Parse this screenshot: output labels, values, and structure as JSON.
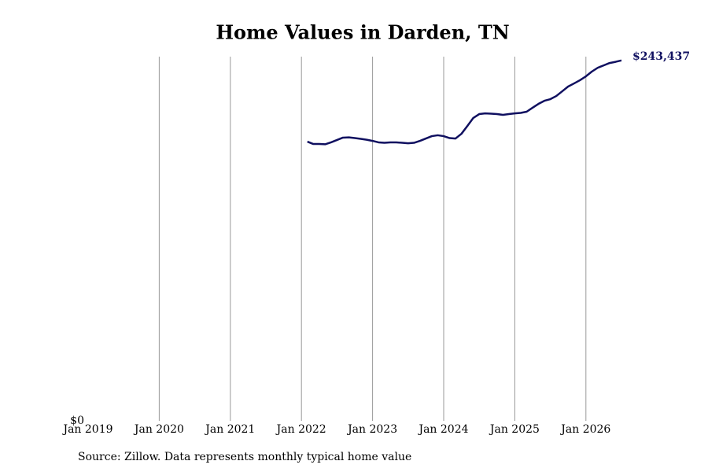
{
  "chart_data": {
    "type": "line",
    "title": "Home Values in Darden, TN",
    "source": "Source: Zillow. Data represents monthly typical home value",
    "x": [
      "2022-02",
      "2022-03",
      "2022-04",
      "2022-05",
      "2022-06",
      "2022-07",
      "2022-08",
      "2022-09",
      "2022-10",
      "2022-11",
      "2022-12",
      "2023-01",
      "2023-02",
      "2023-03",
      "2023-04",
      "2023-05",
      "2023-06",
      "2023-07",
      "2023-08",
      "2023-09",
      "2023-10",
      "2023-11",
      "2023-12",
      "2024-01",
      "2024-02",
      "2024-03",
      "2024-04",
      "2024-05",
      "2024-06",
      "2024-07",
      "2024-08",
      "2024-09",
      "2024-10",
      "2024-11",
      "2024-12",
      "2025-01",
      "2025-02",
      "2025-03",
      "2025-04",
      "2025-05",
      "2025-06",
      "2025-07",
      "2025-08",
      "2025-09",
      "2025-10",
      "2025-11",
      "2025-12",
      "2026-01",
      "2026-02",
      "2026-03",
      "2026-04",
      "2026-05",
      "2026-06",
      "2026-07"
    ],
    "series": [
      {
        "name": "Typical home value",
        "color": "#101060",
        "values": [
          188600,
          187000,
          187000,
          186800,
          188100,
          189700,
          191300,
          191500,
          191000,
          190500,
          189900,
          189100,
          188100,
          187800,
          188100,
          188100,
          187800,
          187500,
          187800,
          189100,
          190700,
          192300,
          192900,
          192300,
          191000,
          190700,
          193900,
          199200,
          204600,
          207200,
          207700,
          207500,
          207200,
          206700,
          207200,
          207700,
          208000,
          208800,
          211500,
          214100,
          216200,
          217300,
          219400,
          222600,
          225800,
          227900,
          230100,
          232700,
          235900,
          238500,
          240100,
          241700,
          242500,
          243437
        ],
        "last_value_label": "$243,437"
      }
    ],
    "xlim": [
      "2019-01",
      "2026-07"
    ],
    "xticks": [
      {
        "value": "2019-01",
        "label": "Jan 2019"
      },
      {
        "value": "2020-01",
        "label": "Jan 2020"
      },
      {
        "value": "2021-01",
        "label": "Jan 2021"
      },
      {
        "value": "2022-01",
        "label": "Jan 2022"
      },
      {
        "value": "2023-01",
        "label": "Jan 2023"
      },
      {
        "value": "2024-01",
        "label": "Jan 2024"
      },
      {
        "value": "2025-01",
        "label": "Jan 2025"
      },
      {
        "value": "2026-01",
        "label": "Jan 2026"
      }
    ],
    "ylim": [
      0,
      246000
    ],
    "yticks": [
      {
        "value": 0,
        "label": "$0"
      }
    ],
    "grid": true
  }
}
